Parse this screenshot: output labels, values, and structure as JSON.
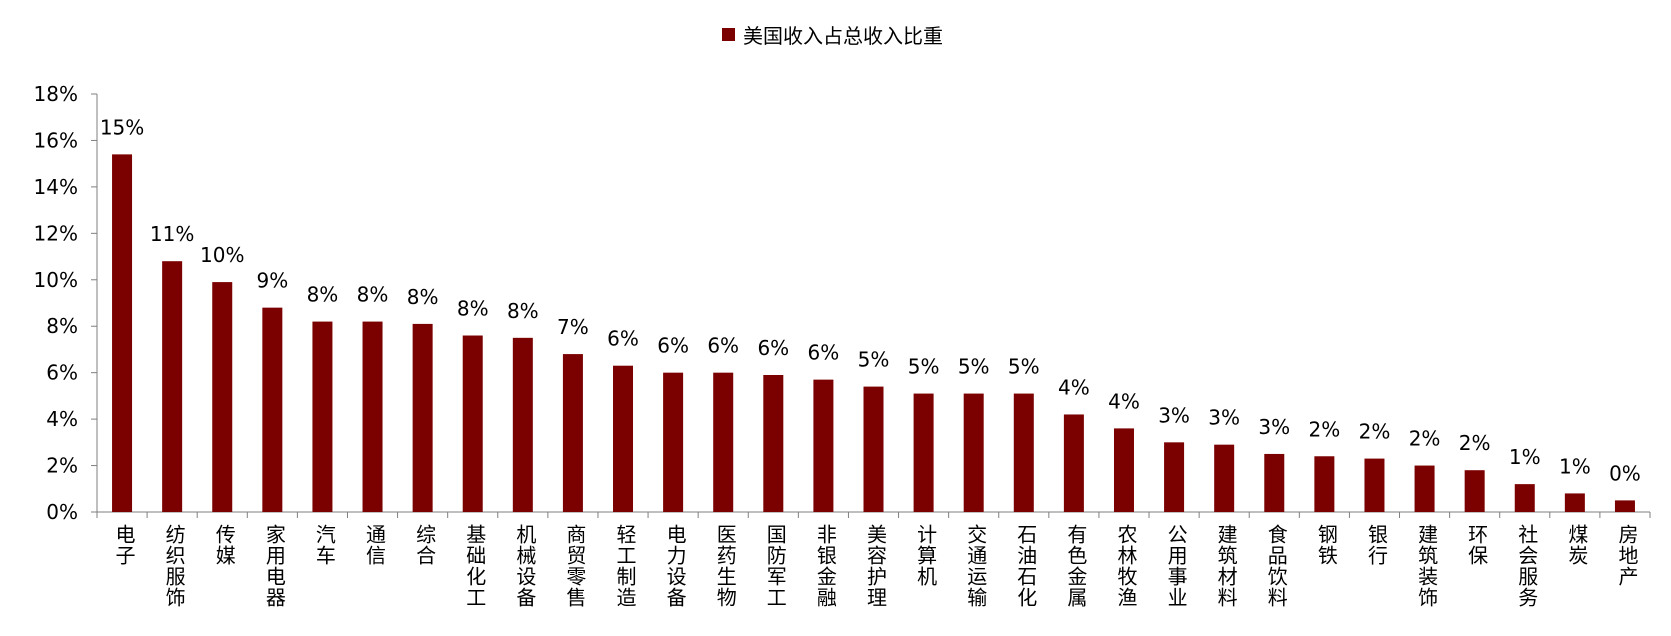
{
  "chart_data": {
    "type": "bar",
    "legend": {
      "label": "美国收入占总收入比重",
      "position": "top-center"
    },
    "series": [
      {
        "name": "美国收入占总收入比重",
        "values": [
          15.4,
          10.8,
          9.9,
          8.8,
          8.2,
          8.2,
          8.1,
          7.6,
          7.5,
          6.8,
          6.3,
          6.0,
          6.0,
          5.9,
          5.7,
          5.4,
          5.1,
          5.1,
          5.1,
          4.2,
          3.6,
          3.0,
          2.9,
          2.5,
          2.4,
          2.3,
          2.0,
          1.8,
          1.2,
          0.8,
          0.5
        ],
        "labels": [
          "15%",
          "11%",
          "10%",
          "9%",
          "8%",
          "8%",
          "8%",
          "8%",
          "8%",
          "7%",
          "6%",
          "6%",
          "6%",
          "6%",
          "6%",
          "5%",
          "5%",
          "5%",
          "5%",
          "4%",
          "4%",
          "3%",
          "3%",
          "3%",
          "2%",
          "2%",
          "2%",
          "2%",
          "1%",
          "1%",
          "0%"
        ]
      }
    ],
    "categories": [
      "电子",
      "纺织服饰",
      "传媒",
      "家用电器",
      "汽车",
      "通信",
      "综合",
      "基础化工",
      "机械设备",
      "商贸零售",
      "轻工制造",
      "电力设备",
      "医药生物",
      "国防军工",
      "非银金融",
      "美容护理",
      "计算机",
      "交通运输",
      "石油石化",
      "有色金属",
      "农林牧渔",
      "公用事业",
      "建筑材料",
      "食品饮料",
      "钢铁",
      "银行",
      "建筑装饰",
      "环保",
      "社会服务",
      "煤炭",
      "房地产"
    ],
    "y_ticks": [
      "0%",
      "2%",
      "4%",
      "6%",
      "8%",
      "10%",
      "12%",
      "14%",
      "16%",
      "18%"
    ],
    "ylim": [
      0,
      18
    ],
    "grid": false,
    "colors": {
      "bar": "#7B0000",
      "axis": "#7f7f7f",
      "text": "#000000"
    }
  }
}
